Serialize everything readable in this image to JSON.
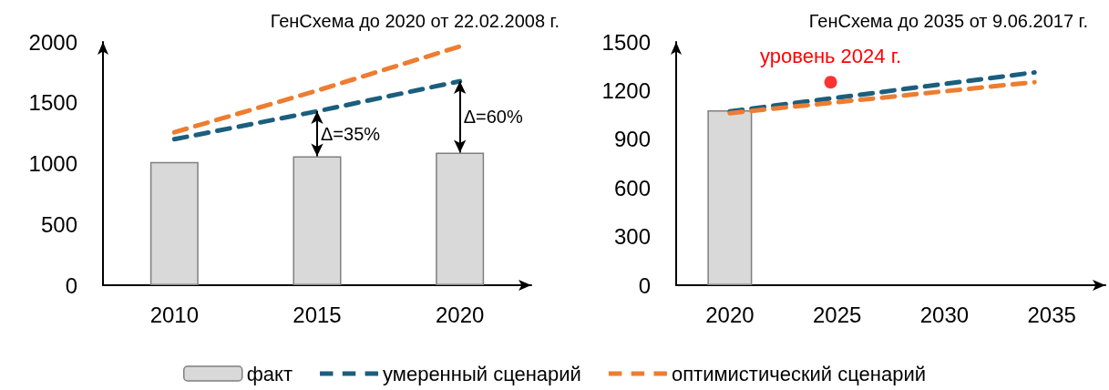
{
  "chart_data": [
    {
      "type": "bar",
      "title": "ГенСхема до 2020 от 22.02.2008 г.",
      "categories": [
        "2010",
        "2015",
        "2020"
      ],
      "ylim": [
        0,
        2000
      ],
      "yticks": [
        0,
        500,
        1000,
        1500,
        2000
      ],
      "legend": "bottom",
      "marker": "none",
      "line_style": "dashed",
      "series": [
        {
          "name": "факт",
          "color": "#d9d9d9",
          "values": [
            1014,
            1060,
            1089
          ]
        },
        {
          "name": "умеренный сценарий",
          "type": "line",
          "color": "#1b5e7e",
          "values": [
            1200,
            1430,
            1677
          ]
        },
        {
          "name": "оптимистический сценарий",
          "type": "line",
          "color": "#ed7d31",
          "values": [
            1257,
            1600,
            1963
          ]
        }
      ],
      "annotations": [
        {
          "text": "Δ=35%",
          "x": "2015",
          "y": 1430
        },
        {
          "text": "Δ=60%",
          "x": "2020",
          "y": 1677
        }
      ]
    },
    {
      "type": "bar",
      "title": "ГенСхема до 2035 от 9.06.2017 г.",
      "xlim": [
        2017.5,
        2037.5
      ],
      "xticks": [
        2020,
        2025,
        2030,
        2035
      ],
      "ylim": [
        0,
        1500
      ],
      "yticks": [
        0,
        300,
        600,
        900,
        1200,
        1500
      ],
      "marker": "none",
      "line_style": "dashed",
      "series": [
        {
          "color": "#d9d9d9",
          "x": [
            2020
          ],
          "values": [
            1078
          ]
        },
        {
          "type": "line",
          "color": "#1b5e7e",
          "x": [
            2020,
            2034.2
          ],
          "values": [
            1072,
            1312
          ]
        },
        {
          "type": "line",
          "color": "#ed7d31",
          "x": [
            2020,
            2034.2
          ],
          "values": [
            1061,
            1252
          ]
        },
        {
          "type": "scatter",
          "marker": "circle",
          "color": "#ff0000",
          "x": [
            2024.7
          ],
          "values": [
            1252
          ]
        }
      ],
      "annotations": [
        {
          "text": "уровень 2024 г.",
          "x": 2024.7,
          "y": 1252
        }
      ]
    }
  ]
}
